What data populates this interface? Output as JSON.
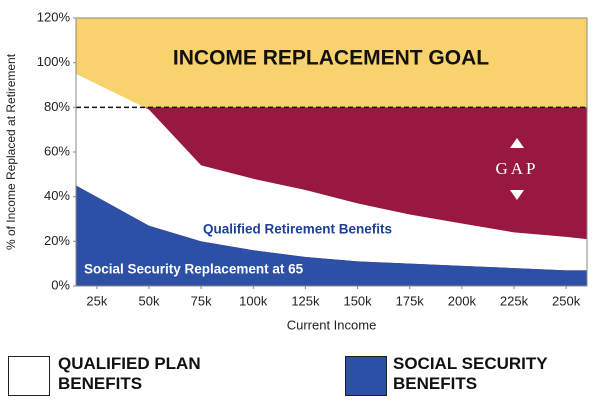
{
  "chart_data": {
    "type": "stacked-area",
    "x_label": "Current Income",
    "y_label": "% of Income Replaced at Retirement",
    "x": [
      15000,
      50000,
      75000,
      100000,
      125000,
      150000,
      175000,
      200000,
      225000,
      250000,
      260000
    ],
    "series": [
      {
        "name": "SOCIAL SECURITY BENEFITS",
        "color": "#2b50a5",
        "values": [
          45,
          27,
          20,
          16,
          13,
          11,
          10,
          9,
          8,
          7,
          7
        ]
      },
      {
        "name": "QUALIFIED PLAN BENEFITS",
        "color": "#ffffff",
        "values": [
          50,
          52,
          34,
          32,
          30,
          26,
          22,
          19,
          16,
          15,
          14
        ]
      }
    ],
    "goal": 80,
    "goal_color": "#f8d26c",
    "gap_color": "#98183f",
    "annotations": [
      "INCOME REPLACEMENT GOAL",
      "GAP",
      "Qualified Retirement Benefits",
      "Social Security Replacement at 65"
    ],
    "xlim": [
      15000,
      260000
    ],
    "ylim": [
      0,
      120
    ],
    "xticks": [
      {
        "value": 25000,
        "label": "25k"
      },
      {
        "value": 50000,
        "label": "50k"
      },
      {
        "value": 75000,
        "label": "75k"
      },
      {
        "value": 100000,
        "label": "100k"
      },
      {
        "value": 125000,
        "label": "125k"
      },
      {
        "value": 150000,
        "label": "150k"
      },
      {
        "value": 175000,
        "label": "175k"
      },
      {
        "value": 200000,
        "label": "200k"
      },
      {
        "value": 225000,
        "label": "225k"
      },
      {
        "value": 250000,
        "label": "250k"
      }
    ],
    "yticks": [
      {
        "value": 0,
        "label": "0%"
      },
      {
        "value": 20,
        "label": "20%"
      },
      {
        "value": 40,
        "label": "40%"
      },
      {
        "value": 60,
        "label": "60%"
      },
      {
        "value": 80,
        "label": "80%"
      },
      {
        "value": 100,
        "label": "100%"
      },
      {
        "value": 120,
        "label": "120%"
      }
    ]
  }
}
